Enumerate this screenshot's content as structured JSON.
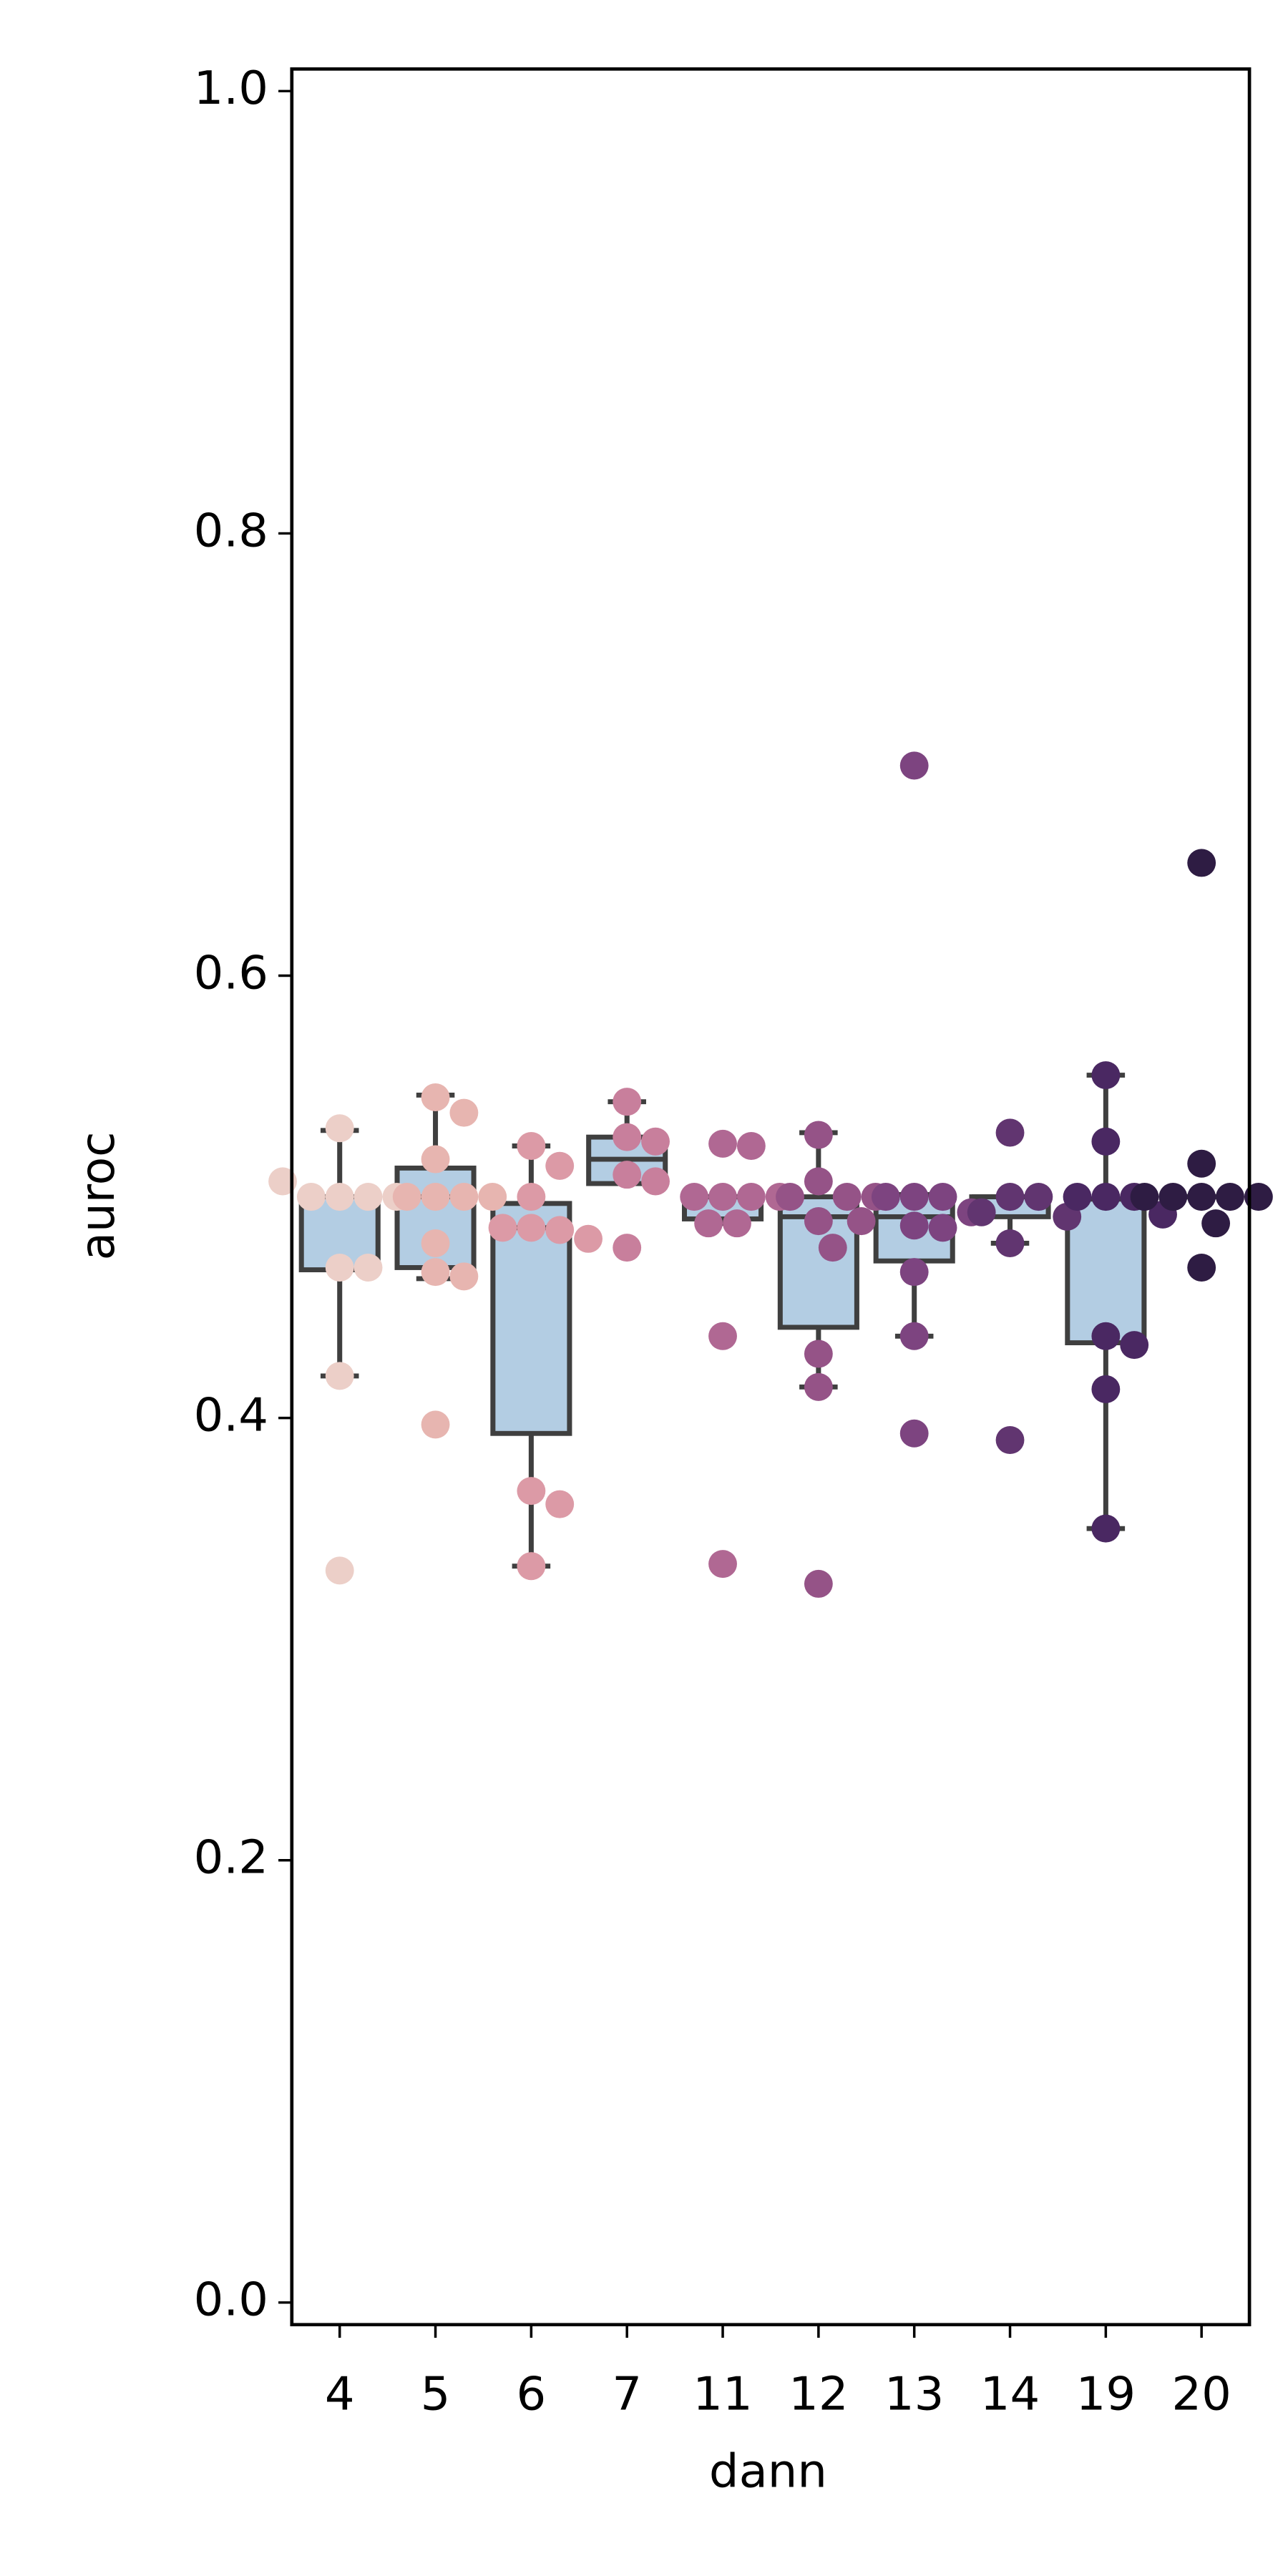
{
  "chart_data": {
    "type": "box",
    "xlabel": "dann",
    "ylabel": "auroc",
    "categories": [
      "4",
      "5",
      "6",
      "7",
      "11",
      "12",
      "13",
      "14",
      "19",
      "20"
    ],
    "box_color": "#b3cde3",
    "ylim": [
      -0.01,
      1.01
    ],
    "yticks": [
      {
        "value": 0,
        "label": "0.0"
      },
      0.2,
      0.4,
      0.6,
      0.8,
      {
        "value": 1,
        "label": "1.0"
      }
    ],
    "groups": [
      {
        "whislo": 0.419,
        "q1": 0.467,
        "med": 0.5,
        "q3": 0.5,
        "whishi": 0.53,
        "color": "#eccfc8",
        "points": [
          0.5,
          0.5,
          0.5,
          0.5,
          0.468,
          0.468,
          0.531,
          0.419,
          0.331,
          0.507
        ]
      },
      {
        "whislo": 0.463,
        "q1": 0.468,
        "med": 0.5,
        "q3": 0.513,
        "whishi": 0.546,
        "color": "#e7b5b0",
        "points": [
          0.545,
          0.538,
          0.517,
          0.5,
          0.5,
          0.5,
          0.5,
          0.479,
          0.466,
          0.464,
          0.397
        ]
      },
      {
        "whislo": 0.333,
        "q1": 0.393,
        "med": 0.486,
        "q3": 0.497,
        "whishi": 0.523,
        "color": "#dc9aa6",
        "points": [
          0.523,
          0.514,
          0.5,
          0.486,
          0.485,
          0.486,
          0.481,
          0.367,
          0.361,
          0.333
        ]
      },
      {
        "whislo": 0.506,
        "q1": 0.506,
        "med": 0.517,
        "q3": 0.527,
        "whishi": 0.543,
        "color": "#c87f9c",
        "points": [
          0.543,
          0.527,
          0.525,
          0.51,
          0.507,
          0.477
        ]
      },
      {
        "whislo": 0.488,
        "q1": 0.49,
        "med": 0.5,
        "q3": 0.5,
        "whishi": 0.5,
        "color": "#b06893",
        "points": [
          0.524,
          0.523,
          0.5,
          0.5,
          0.5,
          0.5,
          0.488,
          0.488,
          0.437,
          0.334
        ]
      },
      {
        "whislo": 0.414,
        "q1": 0.441,
        "med": 0.491,
        "q3": 0.5,
        "whishi": 0.529,
        "color": "#955387",
        "points": [
          0.528,
          0.507,
          0.5,
          0.5,
          0.5,
          0.489,
          0.489,
          0.477,
          0.429,
          0.414,
          0.325
        ]
      },
      {
        "whislo": 0.437,
        "q1": 0.471,
        "med": 0.491,
        "q3": 0.501,
        "whishi": 0.501,
        "color": "#7d4480",
        "points": [
          0.695,
          0.5,
          0.5,
          0.5,
          0.493,
          0.487,
          0.486,
          0.466,
          0.437,
          0.393
        ]
      },
      {
        "whislo": 0.479,
        "q1": 0.491,
        "med": 0.5,
        "q3": 0.5,
        "whishi": 0.5,
        "color": "#613570",
        "points": [
          0.529,
          0.5,
          0.5,
          0.493,
          0.491,
          0.479,
          0.39
        ]
      },
      {
        "whislo": 0.35,
        "q1": 0.434,
        "med": 0.499,
        "q3": 0.499,
        "whishi": 0.555,
        "color": "#4a2862",
        "points": [
          0.555,
          0.525,
          0.5,
          0.5,
          0.5,
          0.492,
          0.437,
          0.433,
          0.413,
          0.35
        ]
      },
      {
        "whislo": 0.5,
        "q1": 0.5,
        "med": 0.5,
        "q3": 0.5,
        "whishi": 0.5,
        "color": "#2e1c43",
        "points": [
          0.651,
          0.515,
          0.5,
          0.5,
          0.5,
          0.5,
          0.5,
          0.488,
          0.468
        ]
      }
    ]
  }
}
